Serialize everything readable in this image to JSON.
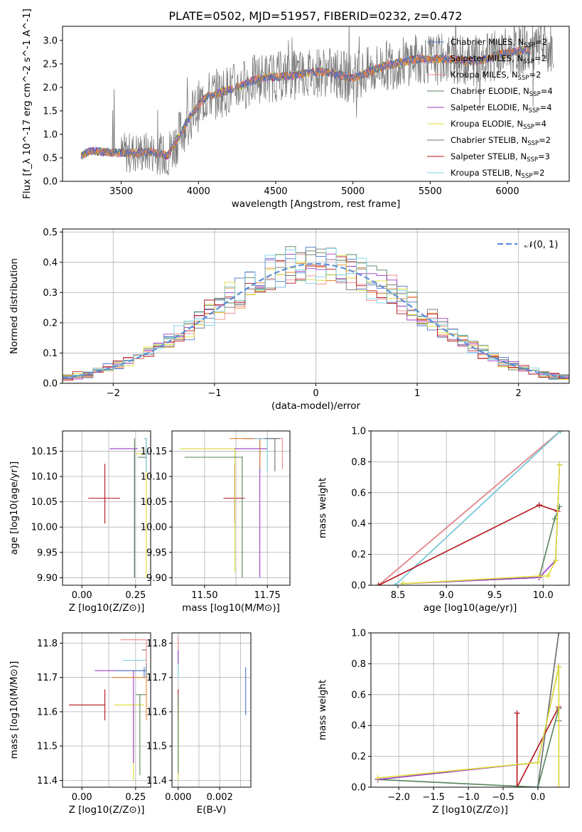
{
  "colors": {
    "chab_miles": "#4a73c8",
    "salp_miles": "#e8832a",
    "krou_miles": "#f08a8a",
    "chab_elod": "#56845c",
    "salp_elod": "#9b3bc4",
    "krou_elod": "#dede35",
    "chab_stel": "#707070",
    "salp_stel": "#b3121a",
    "krou_stel": "#78d1e3",
    "normal": "#5b8fd9",
    "grid": "#b0b0b0"
  },
  "chart_data": [
    {
      "id": "spectrum",
      "type": "line",
      "title": "PLATE=0502, MJD=51957, FIBERID=0232, z=0.472",
      "xlabel": "wavelength [Angstrom, rest frame]",
      "ylabel": "Flux [f_λ 10^-17 erg cm^-2 s^-1 A^-1]",
      "xlim": [
        3120,
        6400
      ],
      "ylim": [
        0,
        3.3
      ],
      "xticks": [
        "3500",
        "4000",
        "4500",
        "5000",
        "5500",
        "6000"
      ],
      "yticks": [
        "0.0",
        "0.5",
        "1.0",
        "1.5",
        "2.0",
        "2.5",
        "3.0"
      ],
      "grid": false,
      "legend_position": "right",
      "series": [
        {
          "name": "Chabrier MILES, N",
          "sub": "SSP",
          "suffix": "=2"
        },
        {
          "name": "Salpeter MILES, N",
          "sub": "SSP",
          "suffix": "=2"
        },
        {
          "name": "Kroupa MILES, N",
          "sub": "SSP",
          "suffix": "=2"
        },
        {
          "name": "Chabrier ELODIE, N",
          "sub": "SSP",
          "suffix": "=4"
        },
        {
          "name": "Salpeter ELODIE, N",
          "sub": "SSP",
          "suffix": "=4"
        },
        {
          "name": "Kroupa ELODIE, N",
          "sub": "SSP",
          "suffix": "=4"
        },
        {
          "name": "Chabrier STELIB, N",
          "sub": "SSP",
          "suffix": "=2"
        },
        {
          "name": "Salpeter STELIB, N",
          "sub": "SSP",
          "suffix": "=3"
        },
        {
          "name": "Kroupa STELIB, N",
          "sub": "SSP",
          "suffix": "=2"
        }
      ],
      "model_continuum": {
        "x": [
          3240,
          3300,
          3500,
          3700,
          3800,
          3950,
          4050,
          4200,
          4400,
          4600,
          4800,
          5000,
          5200,
          5400,
          5600,
          5800,
          6000,
          6150
        ],
        "y": [
          0.55,
          0.65,
          0.6,
          0.62,
          0.55,
          1.4,
          1.8,
          1.95,
          2.2,
          2.25,
          2.35,
          2.2,
          2.45,
          2.6,
          2.6,
          2.55,
          2.75,
          2.8
        ]
      }
    },
    {
      "id": "residuals",
      "type": "line",
      "xlabel": "(data-model)/error",
      "ylabel": "Normed distribution",
      "xlim": [
        -2.5,
        2.5
      ],
      "ylim": [
        0,
        0.51
      ],
      "xticks": [
        "−2",
        "−1",
        "0",
        "1",
        "2"
      ],
      "yticks": [
        "0.0",
        "0.1",
        "0.2",
        "0.3",
        "0.4",
        "0.5"
      ],
      "grid": true,
      "legend_position": "top-right",
      "legend_label": "𝒩(0, 1)",
      "normal": {
        "mean": 0,
        "sigma": 1
      }
    },
    {
      "id": "z_age",
      "type": "scatter",
      "xlabel": "Z [log10(Z/Z⊙)]",
      "ylabel": "age  [log10(age/yr)]",
      "xlim": [
        -0.09,
        0.32
      ],
      "ylim": [
        9.885,
        10.19
      ],
      "xticks": [
        "0.00",
        "0.25"
      ],
      "yticks": [
        "9.90",
        "9.95",
        "10.00",
        "10.05",
        "10.10",
        "10.15"
      ],
      "grid": true,
      "points": [
        {
          "s": "salp_stel",
          "x": 0.107,
          "y": 10.057,
          "xlo": 0.03,
          "xhi": 0.178,
          "ylo": 10.007,
          "yhi": 10.125
        },
        {
          "s": "salp_elod",
          "x": 0.245,
          "y": 10.155,
          "xlo": 0.13,
          "xhi": 0.26,
          "ylo": 9.9,
          "yhi": 10.155
        },
        {
          "s": "chab_elod",
          "x": 0.245,
          "y": 10.138,
          "xlo": 0.26,
          "xhi": 0.3,
          "ylo": 9.9,
          "yhi": 10.175
        },
        {
          "s": "krou_elod",
          "x": 0.3,
          "y": 10.145,
          "xlo": 0.25,
          "xhi": 0.3,
          "ylo": 9.9,
          "yhi": 10.17
        },
        {
          "s": "chab_miles",
          "x": 0.3,
          "y": 10.175,
          "xlo": 0.29,
          "xhi": 0.3,
          "ylo": 10.11,
          "yhi": 10.175
        },
        {
          "s": "salp_miles",
          "x": 0.3,
          "y": 10.175,
          "xlo": 0.29,
          "xhi": 0.3,
          "ylo": 10.11,
          "yhi": 10.175
        },
        {
          "s": "krou_miles",
          "x": 0.3,
          "y": 10.175,
          "xlo": 0.29,
          "xhi": 0.3,
          "ylo": 10.11,
          "yhi": 10.175
        },
        {
          "s": "chab_stel",
          "x": 0.3,
          "y": 10.175,
          "xlo": 0.29,
          "xhi": 0.3,
          "ylo": 10.11,
          "yhi": 10.175
        },
        {
          "s": "krou_stel",
          "x": 0.3,
          "y": 10.175,
          "xlo": 0.29,
          "xhi": 0.3,
          "ylo": 10.11,
          "yhi": 10.175
        }
      ]
    },
    {
      "id": "mass_age",
      "type": "scatter",
      "xlabel": "mass [log10(M/M⊙)]",
      "ylabel": "",
      "xlim": [
        11.37,
        11.84
      ],
      "ylim": [
        9.885,
        10.19
      ],
      "xticks": [
        "11.50",
        "11.75"
      ],
      "yticks": [
        "9.90",
        "9.95",
        "10.00",
        "10.05",
        "10.10",
        "10.15"
      ],
      "grid": true,
      "points": [
        {
          "s": "salp_stel",
          "x": 11.62,
          "y": 10.057,
          "xlo": 11.575,
          "xhi": 11.66,
          "ylo": 10.007,
          "yhi": 10.125
        },
        {
          "s": "krou_elod",
          "x": 11.62,
          "y": 10.155,
          "xlo": 11.4,
          "xhi": 11.62,
          "ylo": 9.91,
          "yhi": 10.155
        },
        {
          "s": "chab_elod",
          "x": 11.65,
          "y": 10.138,
          "xlo": 11.42,
          "xhi": 11.65,
          "ylo": 9.9,
          "yhi": 10.14
        },
        {
          "s": "salp_elod",
          "x": 11.72,
          "y": 10.155,
          "xlo": 11.62,
          "xhi": 11.75,
          "ylo": 9.9,
          "yhi": 10.155
        },
        {
          "s": "chab_miles",
          "x": 11.72,
          "y": 10.175,
          "xlo": 11.65,
          "xhi": 11.78,
          "ylo": 10.11,
          "yhi": 10.175
        },
        {
          "s": "salp_miles",
          "x": 11.72,
          "y": 10.175,
          "xlo": 11.6,
          "xhi": 11.72,
          "ylo": 10.115,
          "yhi": 10.175
        },
        {
          "s": "krou_miles",
          "x": 11.81,
          "y": 10.175,
          "xlo": 11.69,
          "xhi": 11.81,
          "ylo": 10.115,
          "yhi": 10.175
        },
        {
          "s": "krou_stel",
          "x": 11.75,
          "y": 10.175,
          "xlo": 11.7,
          "xhi": 11.78,
          "ylo": 10.11,
          "yhi": 10.175
        },
        {
          "s": "chab_stel",
          "x": 11.78,
          "y": 10.175,
          "xlo": 11.74,
          "xhi": 11.8,
          "ylo": 10.11,
          "yhi": 10.175
        }
      ]
    },
    {
      "id": "age_weight",
      "type": "line",
      "xlabel": "age  [log10(age/yr)]",
      "ylabel": "mass weight",
      "xlim": [
        8.22,
        10.27
      ],
      "ylim": [
        0,
        1.0
      ],
      "xticks": [
        "8.5",
        "9.0",
        "9.5",
        "10.0"
      ],
      "yticks": [
        "0.0",
        "0.2",
        "0.4",
        "0.6",
        "0.8",
        "1.0"
      ],
      "grid": true,
      "series": [
        {
          "s": "salp_miles",
          "x": [
            8.3,
            10.18
          ],
          "y": [
            0.0,
            1.0
          ]
        },
        {
          "s": "chab_miles",
          "x": [
            8.3,
            10.18
          ],
          "y": [
            0.0,
            1.0
          ]
        },
        {
          "s": "krou_miles",
          "x": [
            8.3,
            10.18
          ],
          "y": [
            0.0,
            1.0
          ]
        },
        {
          "s": "chab_stel",
          "x": [
            8.47,
            10.18
          ],
          "y": [
            0.0,
            1.0
          ]
        },
        {
          "s": "krou_stel",
          "x": [
            8.47,
            10.18
          ],
          "y": [
            0.0,
            1.0
          ]
        },
        {
          "s": "salp_stel",
          "x": [
            8.3,
            9.96,
            10.15
          ],
          "y": [
            0.0,
            0.52,
            0.48
          ]
        },
        {
          "s": "chab_elod",
          "x": [
            8.55,
            9.96,
            10.12,
            10.17
          ],
          "y": [
            0.01,
            0.05,
            0.43,
            0.51
          ]
        },
        {
          "s": "salp_elod",
          "x": [
            8.55,
            9.96,
            10.13,
            10.17
          ],
          "y": [
            0.01,
            0.05,
            0.16,
            0.78
          ]
        },
        {
          "s": "krou_elod",
          "x": [
            8.55,
            9.96,
            10.05,
            10.13,
            10.17
          ],
          "y": [
            0.01,
            0.06,
            0.06,
            0.16,
            0.78
          ]
        }
      ]
    },
    {
      "id": "z_mass",
      "type": "scatter",
      "xlabel": "Z [log10(Z/Z⊙)]",
      "ylabel": "mass [log10(M/M⊙)]",
      "xlim": [
        -0.09,
        0.32
      ],
      "ylim": [
        11.38,
        11.83
      ],
      "xticks": [
        "0.00",
        "0.25"
      ],
      "yticks": [
        "11.4",
        "11.5",
        "11.6",
        "11.7",
        "11.8"
      ],
      "grid": true,
      "points": [
        {
          "s": "salp_stel",
          "x": 0.107,
          "y": 11.62,
          "xlo": -0.06,
          "xhi": 0.107,
          "ylo": 11.575,
          "yhi": 11.665
        },
        {
          "s": "krou_elod",
          "x": 0.24,
          "y": 11.62,
          "xlo": 0.15,
          "xhi": 0.29,
          "ylo": 11.4,
          "yhi": 11.62
        },
        {
          "s": "chab_elod",
          "x": 0.27,
          "y": 11.65,
          "xlo": 0.25,
          "xhi": 0.3,
          "ylo": 11.415,
          "yhi": 11.65
        },
        {
          "s": "salp_elod",
          "x": 0.24,
          "y": 11.72,
          "xlo": 0.06,
          "xhi": 0.29,
          "ylo": 11.45,
          "yhi": 11.72
        },
        {
          "s": "salp_miles",
          "x": 0.3,
          "y": 11.7,
          "xlo": 0.14,
          "xhi": 0.3,
          "ylo": 11.575,
          "yhi": 11.72
        },
        {
          "s": "chab_miles",
          "x": 0.29,
          "y": 11.72,
          "xlo": 0.16,
          "xhi": 0.3,
          "ylo": 11.7,
          "yhi": 11.73
        },
        {
          "s": "krou_stel",
          "x": 0.3,
          "y": 11.75,
          "xlo": 0.19,
          "xhi": 0.3,
          "ylo": 11.72,
          "yhi": 11.76
        },
        {
          "s": "chab_stel",
          "x": 0.3,
          "y": 11.78,
          "xlo": 0.28,
          "xhi": 0.3,
          "ylo": 11.7,
          "yhi": 11.78
        },
        {
          "s": "krou_miles",
          "x": 0.3,
          "y": 11.81,
          "xlo": 0.18,
          "xhi": 0.3,
          "ylo": 11.74,
          "yhi": 11.81
        }
      ]
    },
    {
      "id": "ebv_mass",
      "type": "scatter",
      "xlabel": "E(B-V)",
      "ylabel": "",
      "xlim": [
        -0.0003,
        0.0035
      ],
      "ylim": [
        11.38,
        11.83
      ],
      "xticks": [
        "0.000",
        "0.002"
      ],
      "yticks": [
        "11.4",
        "11.5",
        "11.6",
        "11.7",
        "11.8"
      ],
      "grid": true,
      "points": [
        {
          "s": "salp_stel",
          "x": 0.0,
          "y": 11.62,
          "ylo": 11.575,
          "yhi": 11.665
        },
        {
          "s": "krou_elod",
          "x": 0.0,
          "y": 11.62,
          "ylo": 11.4,
          "yhi": 11.62
        },
        {
          "s": "chab_elod",
          "x": 0.0,
          "y": 11.65,
          "ylo": 11.42,
          "yhi": 11.65
        },
        {
          "s": "krou_stel",
          "x": 0.0,
          "y": 11.75,
          "ylo": 11.7,
          "yhi": 11.78
        },
        {
          "s": "salp_elod",
          "x": 0.0,
          "y": 11.77,
          "ylo": 11.74,
          "yhi": 11.78
        },
        {
          "s": "krou_miles",
          "x": 0.0,
          "y": 11.8,
          "ylo": 11.78,
          "yhi": 11.82
        },
        {
          "s": "chab_miles",
          "x": 0.00325,
          "y": 11.66,
          "ylo": 11.59,
          "yhi": 11.73
        }
      ]
    },
    {
      "id": "z_weight",
      "type": "line",
      "xlabel": "Z [log10(Z/Z⊙)]",
      "ylabel": "mass weight",
      "xlim": [
        -2.4,
        0.45
      ],
      "ylim": [
        0,
        1.0
      ],
      "xticks": [
        "−2.0",
        "−1.5",
        "−1.0",
        "−0.5",
        "0.0"
      ],
      "yticks": [
        "0.0",
        "0.2",
        "0.4",
        "0.6",
        "0.8",
        "1.0"
      ],
      "grid": true,
      "series": [
        {
          "s": "krou_stel",
          "x": [
            0.0,
            0.3
          ],
          "y": [
            0.0,
            1.0
          ]
        },
        {
          "s": "chab_stel",
          "x": [
            0.0,
            0.3
          ],
          "y": [
            0.0,
            1.0
          ]
        },
        {
          "s": "salp_stel",
          "x": [
            -0.3,
            -0.3,
            0.3
          ],
          "y": [
            0.48,
            0.0,
            0.52
          ]
        },
        {
          "s": "chab_elod",
          "x": [
            -2.3,
            0.0,
            0.3,
            0.3
          ],
          "y": [
            0.05,
            0.0,
            0.51,
            0.43
          ]
        },
        {
          "s": "salp_elod",
          "x": [
            -2.3,
            0.0,
            0.3,
            0.3
          ],
          "y": [
            0.05,
            0.16,
            0.78,
            0.0
          ]
        },
        {
          "s": "krou_elod",
          "x": [
            -2.3,
            0.0,
            0.3,
            0.3
          ],
          "y": [
            0.06,
            0.16,
            0.78,
            0.0
          ]
        }
      ]
    }
  ]
}
